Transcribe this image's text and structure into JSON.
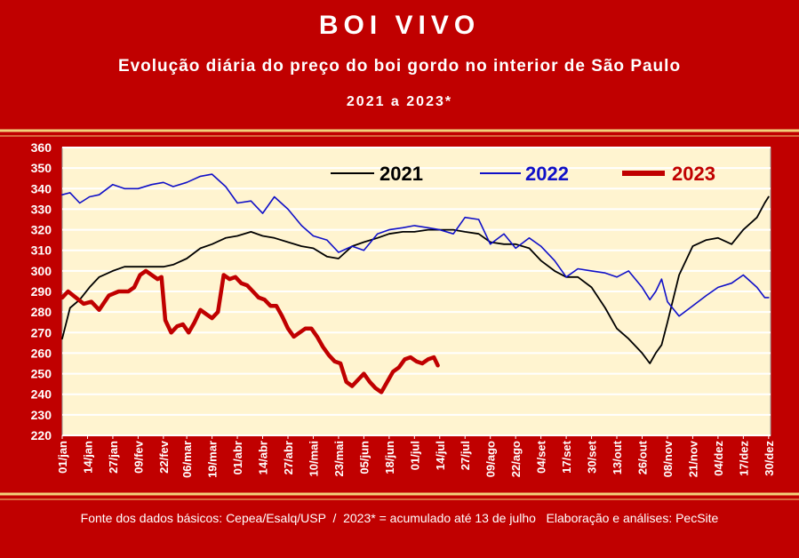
{
  "header": {
    "title": "BOI VIVO",
    "subtitle": "Evolução diária do preço do boi gordo no interior de São Paulo",
    "years": "2021 a 2023*"
  },
  "footer": {
    "note": "Fonte dos dados básicos: Cepea/Esalq/USP  /  2023* = acumulado até 13 de julho   Elaboração e análises: PecSite"
  },
  "colors": {
    "background": "#c00000",
    "plot_bg": "#fff4d0",
    "grid": "#ffffff",
    "series_2021": "#000000",
    "series_2022": "#1010c8",
    "series_2023": "#c00000"
  },
  "chart_data": {
    "type": "line",
    "title": "BOI VIVO",
    "ylim": [
      220,
      360
    ],
    "yticks": [
      220,
      230,
      240,
      250,
      260,
      270,
      280,
      290,
      300,
      310,
      320,
      330,
      340,
      350,
      360
    ],
    "xlim": [
      1,
      365
    ],
    "xticks": [
      {
        "day": 1,
        "label": "01/jan"
      },
      {
        "day": 14,
        "label": "14/jan"
      },
      {
        "day": 27,
        "label": "27/jan"
      },
      {
        "day": 40,
        "label": "09/fev"
      },
      {
        "day": 53,
        "label": "22/fev"
      },
      {
        "day": 65,
        "label": "06/mar"
      },
      {
        "day": 78,
        "label": "19/mar"
      },
      {
        "day": 91,
        "label": "01/abr"
      },
      {
        "day": 104,
        "label": "14/abr"
      },
      {
        "day": 117,
        "label": "27/abr"
      },
      {
        "day": 130,
        "label": "10/mai"
      },
      {
        "day": 143,
        "label": "23/mai"
      },
      {
        "day": 156,
        "label": "05/jun"
      },
      {
        "day": 169,
        "label": "18/jun"
      },
      {
        "day": 182,
        "label": "01/jul"
      },
      {
        "day": 195,
        "label": "14/jul"
      },
      {
        "day": 208,
        "label": "27/jul"
      },
      {
        "day": 221,
        "label": "09/ago"
      },
      {
        "day": 234,
        "label": "22/ago"
      },
      {
        "day": 247,
        "label": "04/set"
      },
      {
        "day": 260,
        "label": "17/set"
      },
      {
        "day": 273,
        "label": "30/set"
      },
      {
        "day": 286,
        "label": "13/out"
      },
      {
        "day": 299,
        "label": "26/out"
      },
      {
        "day": 312,
        "label": "08/nov"
      },
      {
        "day": 325,
        "label": "21/nov"
      },
      {
        "day": 338,
        "label": "04/dez"
      },
      {
        "day": 351,
        "label": "17/dez"
      },
      {
        "day": 364,
        "label": "30/dez"
      }
    ],
    "grid": true,
    "legend_position": "top-right",
    "series": [
      {
        "name": "2021",
        "color": "#000000",
        "x": [
          1,
          5,
          10,
          15,
          20,
          27,
          33,
          40,
          47,
          53,
          58,
          65,
          72,
          78,
          85,
          91,
          98,
          104,
          110,
          117,
          124,
          130,
          137,
          143,
          150,
          156,
          163,
          169,
          176,
          182,
          189,
          195,
          202,
          208,
          215,
          221,
          228,
          234,
          241,
          247,
          254,
          260,
          266,
          273,
          280,
          286,
          292,
          299,
          303,
          306,
          309,
          312,
          318,
          325,
          332,
          338,
          345,
          351,
          358,
          362,
          364
        ],
        "y": [
          267,
          282,
          286,
          292,
          297,
          300,
          302,
          302,
          302,
          302,
          303,
          306,
          311,
          313,
          316,
          317,
          319,
          317,
          316,
          314,
          312,
          311,
          307,
          306,
          312,
          314,
          316,
          318,
          319,
          319,
          320,
          320,
          320,
          319,
          318,
          314,
          313,
          313,
          311,
          305,
          300,
          297,
          297,
          292,
          282,
          272,
          267,
          260,
          255,
          260,
          264,
          275,
          298,
          312,
          315,
          316,
          313,
          320,
          326,
          333,
          336
        ]
      },
      {
        "name": "2022",
        "color": "#1010c8",
        "x": [
          1,
          5,
          10,
          15,
          20,
          27,
          33,
          40,
          47,
          53,
          58,
          65,
          72,
          78,
          85,
          91,
          98,
          104,
          110,
          117,
          124,
          130,
          137,
          143,
          150,
          156,
          163,
          169,
          176,
          182,
          189,
          195,
          202,
          208,
          215,
          221,
          228,
          234,
          241,
          247,
          254,
          260,
          266,
          273,
          280,
          286,
          292,
          299,
          303,
          306,
          309,
          312,
          318,
          325,
          332,
          338,
          345,
          351,
          358,
          362,
          364
        ],
        "y": [
          337,
          338,
          333,
          336,
          337,
          342,
          340,
          340,
          342,
          343,
          341,
          343,
          346,
          347,
          341,
          333,
          334,
          328,
          336,
          330,
          322,
          317,
          315,
          309,
          312,
          310,
          318,
          320,
          321,
          322,
          321,
          320,
          318,
          326,
          325,
          313,
          318,
          311,
          316,
          312,
          305,
          297,
          301,
          300,
          299,
          297,
          300,
          292,
          286,
          290,
          296,
          285,
          278,
          283,
          288,
          292,
          294,
          298,
          292,
          287,
          287
        ]
      },
      {
        "name": "2023",
        "color": "#c00000",
        "x": [
          1,
          4,
          8,
          12,
          16,
          20,
          25,
          30,
          35,
          38,
          41,
          44,
          47,
          50,
          52,
          54,
          57,
          60,
          63,
          66,
          69,
          72,
          75,
          78,
          81,
          84,
          87,
          90,
          93,
          96,
          99,
          102,
          105,
          108,
          111,
          114,
          117,
          120,
          123,
          126,
          129,
          132,
          135,
          138,
          141,
          144,
          147,
          150,
          153,
          156,
          159,
          162,
          165,
          168,
          171,
          174,
          177,
          180,
          183,
          186,
          189,
          192,
          194
        ],
        "y": [
          287,
          290,
          287,
          284,
          285,
          281,
          288,
          290,
          290,
          292,
          298,
          300,
          298,
          296,
          297,
          276,
          270,
          273,
          274,
          270,
          275,
          281,
          279,
          277,
          280,
          298,
          296,
          297,
          294,
          293,
          290,
          287,
          286,
          283,
          283,
          278,
          272,
          268,
          270,
          272,
          272,
          268,
          263,
          259,
          256,
          255,
          246,
          244,
          247,
          250,
          246,
          243,
          241,
          246,
          251,
          253,
          257,
          258,
          256,
          255,
          257,
          258,
          254
        ]
      }
    ]
  }
}
